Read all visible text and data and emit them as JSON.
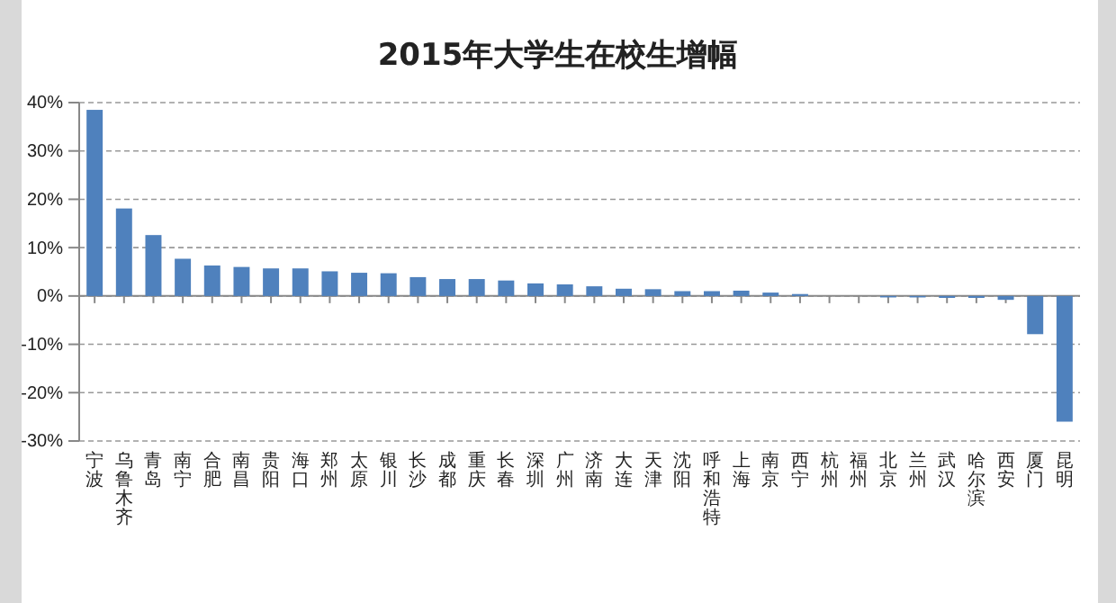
{
  "chart_data": {
    "type": "bar",
    "title": "2015年大学生在校生增幅",
    "categories": [
      "宁波",
      "乌鲁木齐",
      "青岛",
      "南宁",
      "合肥",
      "南昌",
      "贵阳",
      "海口",
      "郑州",
      "太原",
      "银川",
      "长沙",
      "成都",
      "重庆",
      "长春",
      "深圳",
      "广州",
      "济南",
      "大连",
      "天津",
      "沈阳",
      "呼和浩特",
      "上海",
      "南京",
      "西宁",
      "杭州",
      "福州",
      "北京",
      "兰州",
      "武汉",
      "哈尔滨",
      "西安",
      "厦门",
      "昆明"
    ],
    "values": [
      38.5,
      18.1,
      12.6,
      7.7,
      6.3,
      6.0,
      5.7,
      5.7,
      5.1,
      4.8,
      4.7,
      3.9,
      3.5,
      3.5,
      3.2,
      2.6,
      2.4,
      2.0,
      1.5,
      1.4,
      1.0,
      1.0,
      1.1,
      0.7,
      0.4,
      0,
      0,
      -0.3,
      -0.3,
      -0.4,
      -0.4,
      -0.8,
      -7.9,
      -26
    ],
    "color": "#4f81bd",
    "ylim": [
      -30,
      40
    ],
    "yticks": [
      {
        "value": -30,
        "label": "-30%"
      },
      {
        "value": -20,
        "label": "-20%"
      },
      {
        "value": -10,
        "label": "-10%"
      },
      {
        "value": 0,
        "label": "0%"
      },
      {
        "value": 10,
        "label": "10%"
      },
      {
        "value": 20,
        "label": "20%"
      },
      {
        "value": 30,
        "label": "30%"
      },
      {
        "value": 40,
        "label": "40%"
      }
    ],
    "grid": "y"
  }
}
